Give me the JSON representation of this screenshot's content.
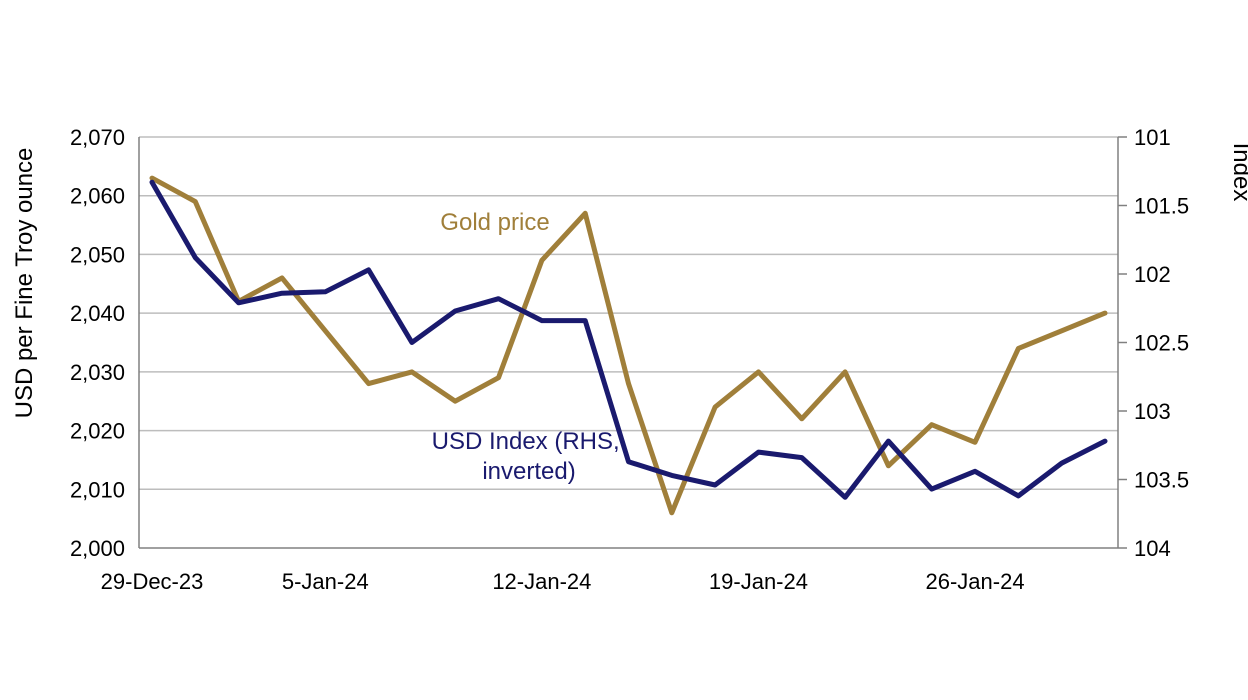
{
  "chart_data": {
    "type": "line",
    "x_ticks": [
      "29-Dec-23",
      "5-Jan-24",
      "12-Jan-24",
      "19-Jan-24",
      "26-Jan-24"
    ],
    "x": [
      "29-Dec-23",
      "2-Jan-24",
      "3-Jan-24",
      "4-Jan-24",
      "5-Jan-24",
      "8-Jan-24",
      "9-Jan-24",
      "10-Jan-24",
      "11-Jan-24",
      "12-Jan-24",
      "15-Jan-24",
      "16-Jan-24",
      "17-Jan-24",
      "18-Jan-24",
      "19-Jan-24",
      "22-Jan-24",
      "23-Jan-24",
      "24-Jan-24",
      "25-Jan-24",
      "26-Jan-24",
      "29-Jan-24",
      "30-Jan-24",
      "31-Jan-24"
    ],
    "left_axis": {
      "label": "USD per Fine Troy ounce",
      "ylim": [
        2000,
        2070
      ],
      "ticks": [
        "2,000",
        "2,010",
        "2,020",
        "2,030",
        "2,040",
        "2,050",
        "2,060",
        "2,070"
      ]
    },
    "right_axis": {
      "label": "Index",
      "ylim": [
        101,
        104
      ],
      "inverted": true,
      "ticks": [
        "101",
        "101.5",
        "102",
        "102.5",
        "103",
        "103.5",
        "104"
      ]
    },
    "grid": true,
    "series": [
      {
        "name": "Gold price",
        "axis": "left",
        "color": "#A07F3A",
        "values": [
          2063,
          2059,
          2042,
          2046,
          2037,
          2028,
          2030,
          2025,
          2029,
          2049,
          2057,
          2028,
          2006,
          2024,
          2030,
          2022,
          2030,
          2014,
          2021,
          2018,
          2034,
          2037,
          2040
        ]
      },
      {
        "name": "USD Index (RHS, inverted)",
        "axis": "right",
        "color": "#1A1A6E",
        "values": [
          101.33,
          101.88,
          102.21,
          102.14,
          102.13,
          101.97,
          102.5,
          102.27,
          102.18,
          102.34,
          102.34,
          103.37,
          103.47,
          103.54,
          103.3,
          103.34,
          103.63,
          103.22,
          103.57,
          103.44,
          103.62,
          103.38,
          103.22
        ]
      }
    ]
  }
}
